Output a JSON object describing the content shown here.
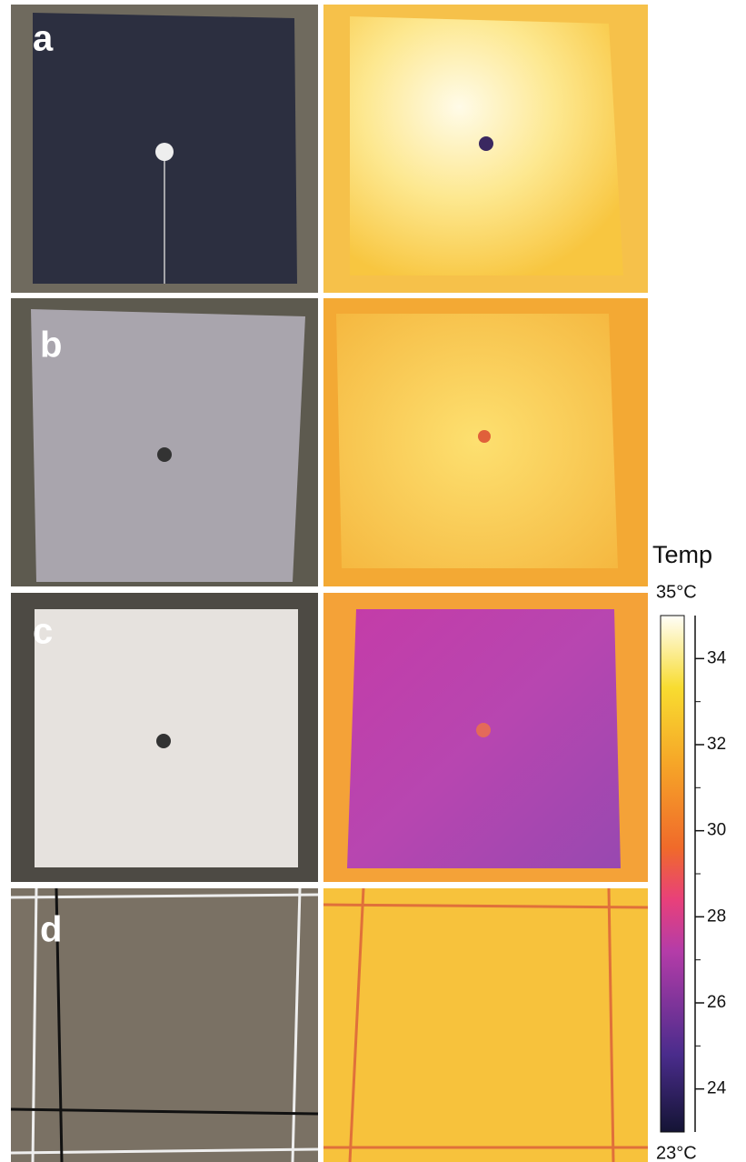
{
  "panels": [
    {
      "label": "a"
    },
    {
      "label": "b"
    },
    {
      "label": "c"
    },
    {
      "label": "d"
    }
  ],
  "colorbar": {
    "title": "Temp",
    "range": [
      {
        "value": 23,
        "label": "23°C"
      },
      {
        "value": 35,
        "label": "35°C"
      }
    ],
    "ticks": [
      24,
      26,
      28,
      30,
      32,
      34
    ],
    "minor_ticks": [
      25,
      27,
      29,
      31,
      33
    ]
  }
}
